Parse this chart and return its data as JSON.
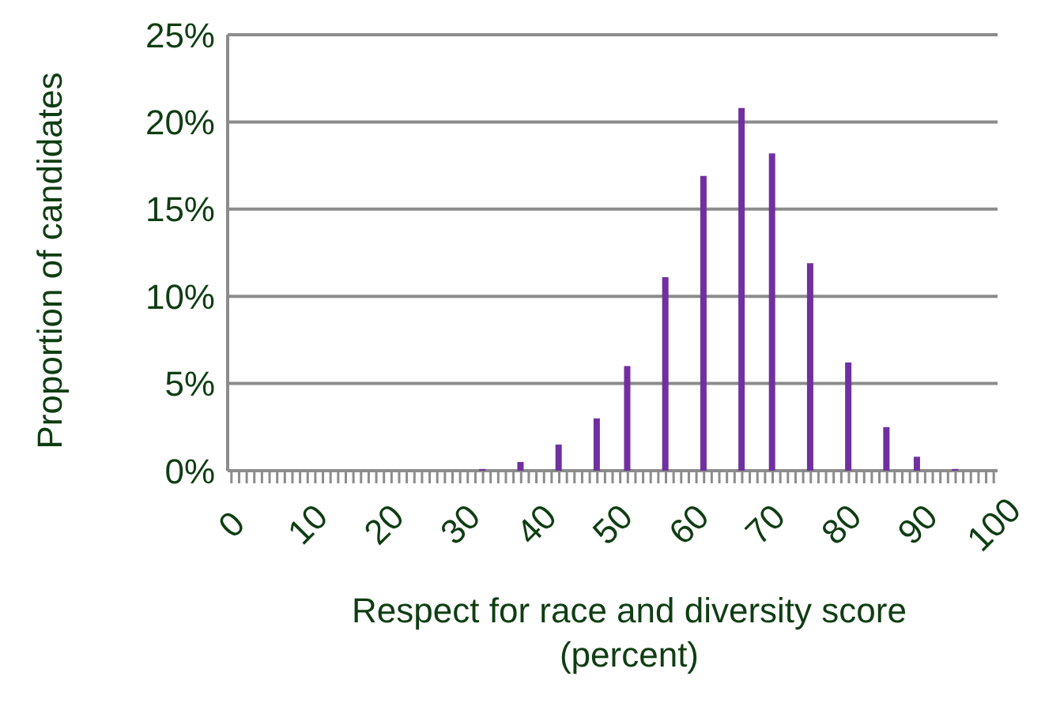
{
  "chart_data": {
    "type": "bar",
    "xlabel": "Respect for race and diversity score (percent)",
    "ylabel": "Proportion of candidates",
    "categories": [
      "0",
      null,
      null,
      null,
      null,
      null,
      null,
      null,
      null,
      null,
      "10",
      null,
      null,
      null,
      null,
      null,
      null,
      null,
      null,
      null,
      "20",
      null,
      null,
      null,
      null,
      null,
      null,
      null,
      null,
      null,
      "30",
      null,
      null,
      null,
      null,
      null,
      null,
      null,
      null,
      null,
      "40",
      null,
      null,
      null,
      null,
      null,
      null,
      null,
      null,
      null,
      "50",
      null,
      null,
      null,
      null,
      null,
      null,
      null,
      null,
      null,
      "60",
      null,
      null,
      null,
      null,
      null,
      null,
      null,
      null,
      null,
      "70",
      null,
      null,
      null,
      null,
      null,
      null,
      null,
      null,
      null,
      "80",
      null,
      null,
      null,
      null,
      null,
      null,
      null,
      null,
      null,
      "90",
      null,
      null,
      null,
      null,
      null,
      null,
      null,
      null,
      null,
      "100"
    ],
    "values": [
      0,
      0,
      0,
      0,
      0,
      0,
      0,
      0,
      0,
      0,
      0,
      0,
      0,
      0,
      0,
      0,
      0,
      0,
      0,
      0,
      0,
      0,
      0,
      0,
      0,
      0,
      0,
      0,
      0,
      0,
      0,
      0,
      0,
      0.1,
      0,
      0,
      0,
      0,
      0.5,
      0,
      0,
      0,
      0,
      1.5,
      0,
      0,
      0,
      0,
      3.0,
      0,
      0,
      0,
      6.0,
      0,
      0,
      0,
      0,
      11.1,
      0,
      0,
      0,
      0,
      16.9,
      0,
      0,
      0,
      0,
      20.8,
      0,
      0,
      0,
      18.2,
      0,
      0,
      0,
      0,
      11.9,
      0,
      0,
      0,
      0,
      6.2,
      0,
      0,
      0,
      0,
      2.5,
      0,
      0,
      0,
      0.8,
      0,
      0,
      0,
      0,
      0.1,
      0,
      0,
      0,
      0,
      0
    ],
    "color": "#7030a0",
    "ylim": [
      0,
      25
    ],
    "yticks": [
      {
        "value": 0,
        "label": "0%"
      },
      {
        "value": 5,
        "label": "5%"
      },
      {
        "value": 10,
        "label": "10%"
      },
      {
        "value": 15,
        "label": "15%"
      },
      {
        "value": 20,
        "label": "20%"
      },
      {
        "value": 25,
        "label": "25%"
      }
    ],
    "grid": "y"
  }
}
